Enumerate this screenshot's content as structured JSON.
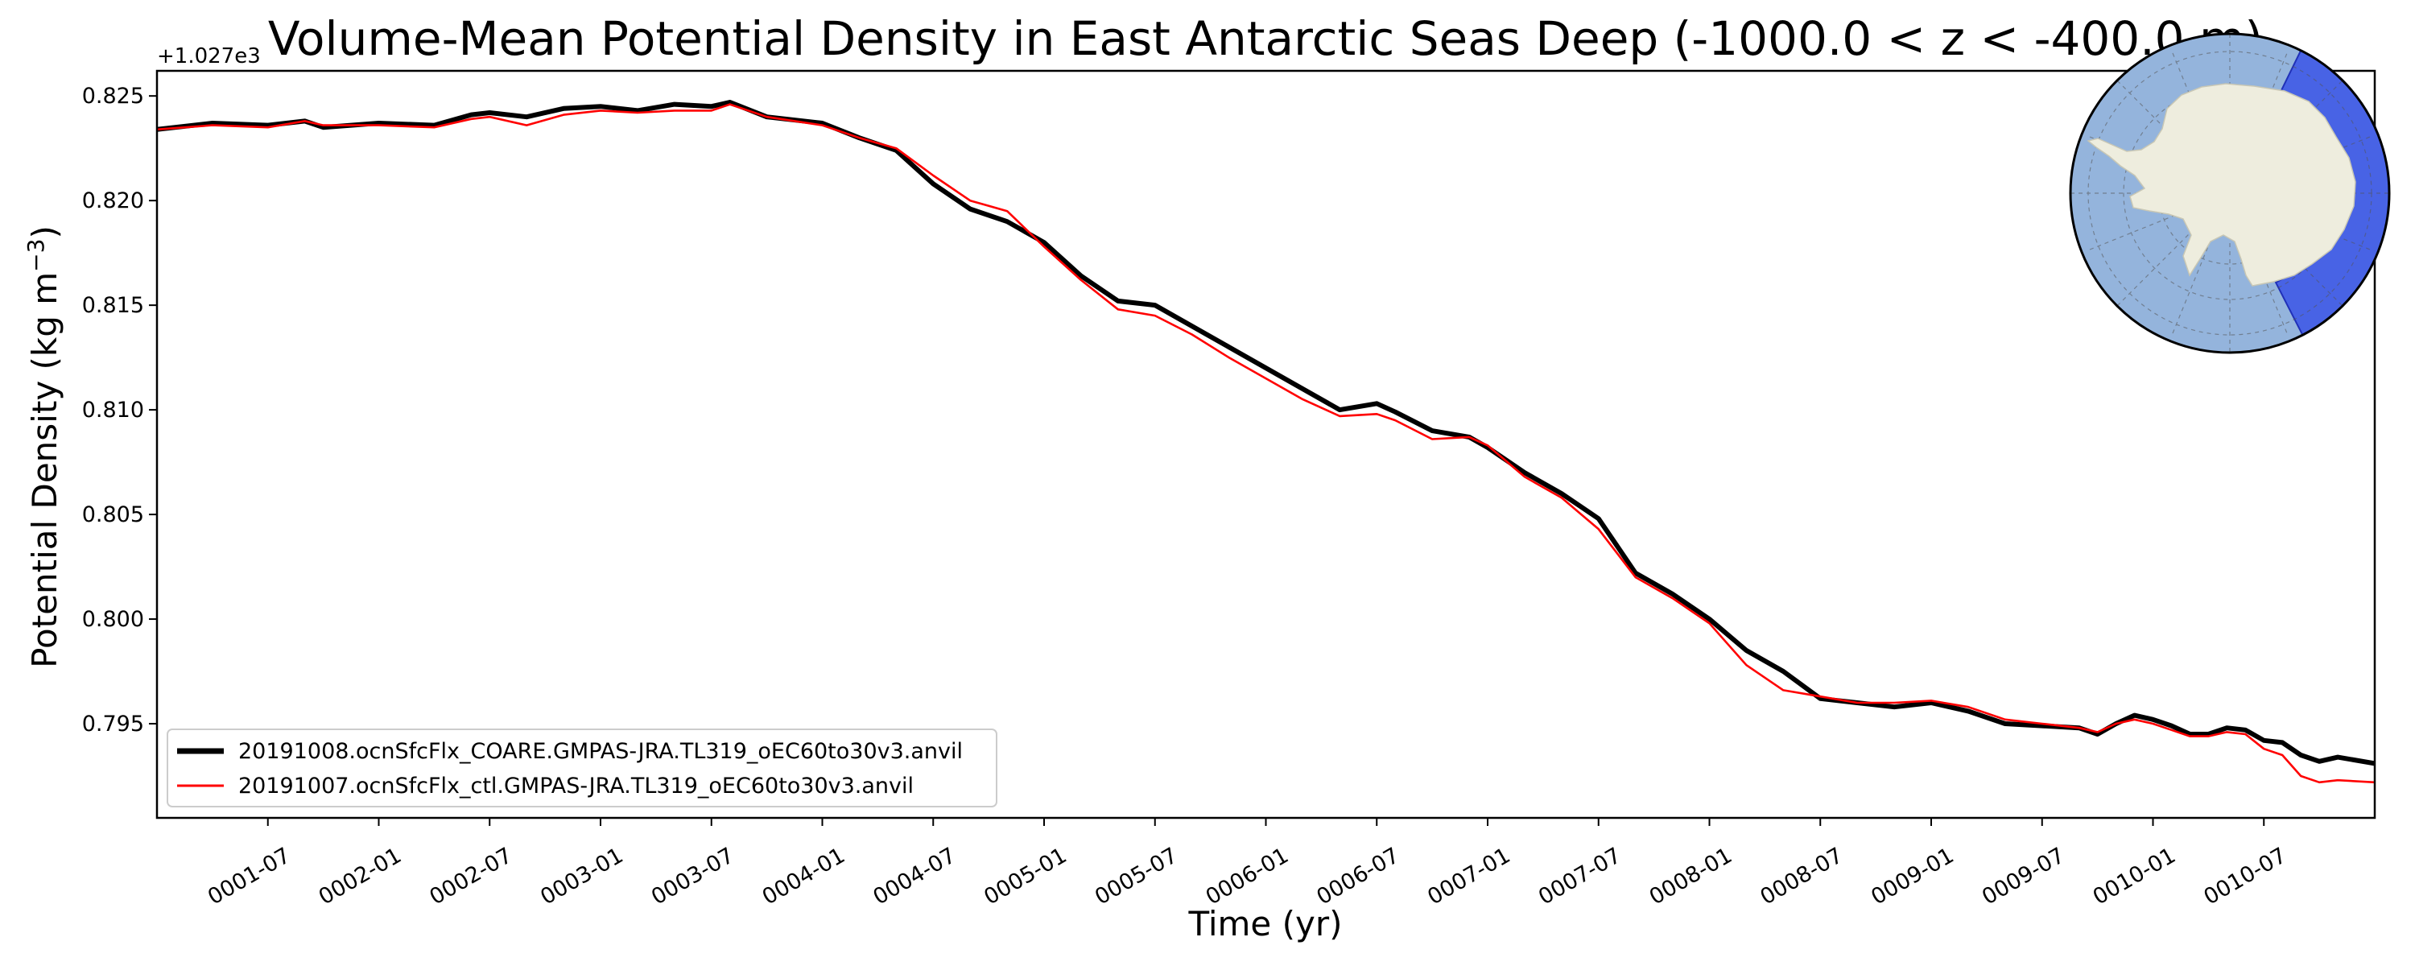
{
  "chart_data": {
    "type": "line",
    "title": "Volume-Mean Potential Density in East Antarctic Seas Deep (-1000.0 < z < -400.0 m)",
    "xlabel": "Time (yr)",
    "ylabel_main": "Potential Density (kg m",
    "ylabel_sup": "−3",
    "ylabel_close": ")",
    "y_offset_label": "+1.027e3",
    "x_unit": "year (month index within 10-year record)",
    "xlim": [
      0,
      120
    ],
    "ylim": [
      0.7905,
      0.8262
    ],
    "x_ticks": [
      {
        "x": 6,
        "label": "0001-07"
      },
      {
        "x": 12,
        "label": "0002-01"
      },
      {
        "x": 18,
        "label": "0002-07"
      },
      {
        "x": 24,
        "label": "0003-01"
      },
      {
        "x": 30,
        "label": "0003-07"
      },
      {
        "x": 36,
        "label": "0004-01"
      },
      {
        "x": 42,
        "label": "0004-07"
      },
      {
        "x": 48,
        "label": "0005-01"
      },
      {
        "x": 54,
        "label": "0005-07"
      },
      {
        "x": 60,
        "label": "0006-01"
      },
      {
        "x": 66,
        "label": "0006-07"
      },
      {
        "x": 72,
        "label": "0007-01"
      },
      {
        "x": 78,
        "label": "0007-07"
      },
      {
        "x": 84,
        "label": "0008-01"
      },
      {
        "x": 90,
        "label": "0008-07"
      },
      {
        "x": 96,
        "label": "0009-01"
      },
      {
        "x": 102,
        "label": "0009-07"
      },
      {
        "x": 108,
        "label": "0010-01"
      },
      {
        "x": 114,
        "label": "0010-07"
      }
    ],
    "y_ticks": [
      {
        "v": 0.795,
        "label": "0.795"
      },
      {
        "v": 0.8,
        "label": "0.800"
      },
      {
        "v": 0.805,
        "label": "0.805"
      },
      {
        "v": 0.81,
        "label": "0.810"
      },
      {
        "v": 0.815,
        "label": "0.815"
      },
      {
        "v": 0.82,
        "label": "0.820"
      },
      {
        "v": 0.825,
        "label": "0.825"
      }
    ],
    "legend_position": "lower-left",
    "series": [
      {
        "name": "20191008.ocnSfcFlx_COARE.GMPAS-JRA.TL319_oEC60to30v3.anvil",
        "color": "#000000",
        "line_width": "thick",
        "points": [
          [
            0,
            0.8234
          ],
          [
            3,
            0.8237
          ],
          [
            6,
            0.8236
          ],
          [
            8,
            0.8238
          ],
          [
            9,
            0.8235
          ],
          [
            12,
            0.8237
          ],
          [
            15,
            0.8236
          ],
          [
            17,
            0.8241
          ],
          [
            18,
            0.8242
          ],
          [
            20,
            0.824
          ],
          [
            22,
            0.8244
          ],
          [
            24,
            0.8245
          ],
          [
            26,
            0.8243
          ],
          [
            28,
            0.8246
          ],
          [
            30,
            0.8245
          ],
          [
            31,
            0.8247
          ],
          [
            33,
            0.824
          ],
          [
            36,
            0.8237
          ],
          [
            38,
            0.823
          ],
          [
            40,
            0.8224
          ],
          [
            42,
            0.8208
          ],
          [
            44,
            0.8196
          ],
          [
            46,
            0.819
          ],
          [
            48,
            0.818
          ],
          [
            50,
            0.8164
          ],
          [
            52,
            0.8152
          ],
          [
            54,
            0.815
          ],
          [
            56,
            0.814
          ],
          [
            58,
            0.813
          ],
          [
            60,
            0.812
          ],
          [
            62,
            0.811
          ],
          [
            64,
            0.81
          ],
          [
            66,
            0.8103
          ],
          [
            67,
            0.8099
          ],
          [
            69,
            0.809
          ],
          [
            71,
            0.8087
          ],
          [
            72,
            0.8082
          ],
          [
            74,
            0.807
          ],
          [
            76,
            0.806
          ],
          [
            78,
            0.8048
          ],
          [
            80,
            0.8022
          ],
          [
            82,
            0.8012
          ],
          [
            84,
            0.8
          ],
          [
            86,
            0.7985
          ],
          [
            88,
            0.7975
          ],
          [
            90,
            0.7962
          ],
          [
            92,
            0.796
          ],
          [
            94,
            0.7958
          ],
          [
            96,
            0.796
          ],
          [
            98,
            0.7956
          ],
          [
            100,
            0.795
          ],
          [
            102,
            0.7949
          ],
          [
            104,
            0.7948
          ],
          [
            105,
            0.7945
          ],
          [
            106,
            0.795
          ],
          [
            107,
            0.7954
          ],
          [
            108,
            0.7952
          ],
          [
            109,
            0.7949
          ],
          [
            110,
            0.7945
          ],
          [
            111,
            0.7945
          ],
          [
            112,
            0.7948
          ],
          [
            113,
            0.7947
          ],
          [
            114,
            0.7942
          ],
          [
            115,
            0.7941
          ],
          [
            116,
            0.7935
          ],
          [
            117,
            0.7932
          ],
          [
            118,
            0.7934
          ],
          [
            120,
            0.7931
          ]
        ]
      },
      {
        "name": "20191007.ocnSfcFlx_ctl.GMPAS-JRA.TL319_oEC60to30v3.anvil",
        "color": "#ff0000",
        "line_width": "thin",
        "points": [
          [
            0,
            0.8234
          ],
          [
            3,
            0.8236
          ],
          [
            6,
            0.8235
          ],
          [
            8,
            0.8238
          ],
          [
            9,
            0.8236
          ],
          [
            12,
            0.8236
          ],
          [
            15,
            0.8235
          ],
          [
            17,
            0.8239
          ],
          [
            18,
            0.824
          ],
          [
            19,
            0.8238
          ],
          [
            20,
            0.8236
          ],
          [
            22,
            0.8241
          ],
          [
            24,
            0.8243
          ],
          [
            26,
            0.8242
          ],
          [
            28,
            0.8243
          ],
          [
            30,
            0.8243
          ],
          [
            31,
            0.8246
          ],
          [
            33,
            0.824
          ],
          [
            36,
            0.8236
          ],
          [
            38,
            0.823
          ],
          [
            40,
            0.8225
          ],
          [
            42,
            0.8212
          ],
          [
            44,
            0.82
          ],
          [
            46,
            0.8195
          ],
          [
            48,
            0.8178
          ],
          [
            50,
            0.8162
          ],
          [
            52,
            0.8148
          ],
          [
            54,
            0.8145
          ],
          [
            56,
            0.8136
          ],
          [
            58,
            0.8125
          ],
          [
            60,
            0.8115
          ],
          [
            62,
            0.8105
          ],
          [
            64,
            0.8097
          ],
          [
            66,
            0.8098
          ],
          [
            67,
            0.8095
          ],
          [
            69,
            0.8086
          ],
          [
            71,
            0.8087
          ],
          [
            72,
            0.8083
          ],
          [
            74,
            0.8068
          ],
          [
            76,
            0.8058
          ],
          [
            78,
            0.8043
          ],
          [
            80,
            0.802
          ],
          [
            82,
            0.801
          ],
          [
            84,
            0.7998
          ],
          [
            86,
            0.7978
          ],
          [
            88,
            0.7966
          ],
          [
            90,
            0.7963
          ],
          [
            92,
            0.796
          ],
          [
            94,
            0.796
          ],
          [
            96,
            0.7961
          ],
          [
            98,
            0.7958
          ],
          [
            100,
            0.7952
          ],
          [
            102,
            0.795
          ],
          [
            104,
            0.7948
          ],
          [
            105,
            0.7946
          ],
          [
            106,
            0.795
          ],
          [
            107,
            0.7952
          ],
          [
            108,
            0.795
          ],
          [
            109,
            0.7947
          ],
          [
            110,
            0.7944
          ],
          [
            111,
            0.7944
          ],
          [
            112,
            0.7946
          ],
          [
            113,
            0.7945
          ],
          [
            114,
            0.7938
          ],
          [
            115,
            0.7935
          ],
          [
            116,
            0.7925
          ],
          [
            117,
            0.7922
          ],
          [
            118,
            0.7923
          ],
          [
            120,
            0.7922
          ]
        ]
      }
    ],
    "inset_map": {
      "projection": "south-polar stereographic",
      "ocean_color": "#94b4dc",
      "land_color": "#eeedde",
      "region_color": "#3b55e6",
      "region": "East Antarctic Seas"
    }
  }
}
